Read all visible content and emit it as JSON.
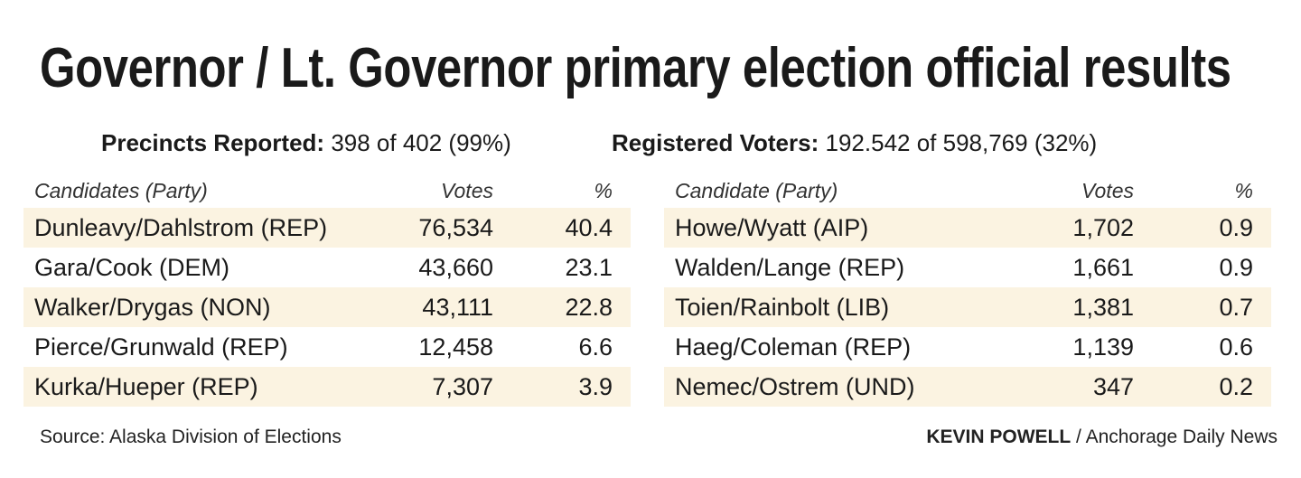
{
  "title": "Governor / Lt. Governor primary election official results",
  "precincts": {
    "label": "Precincts Reported:",
    "value": "398 of 402 (99%)"
  },
  "registered": {
    "label": "Registered Voters:",
    "value": "192.542 of 598,769 (32%)"
  },
  "chart_data": {
    "type": "table",
    "tables": [
      {
        "headers": [
          "Candidates (Party)",
          "Votes",
          "%"
        ],
        "rows": [
          [
            "Dunleavy/Dahlstrom (REP)",
            "76,534",
            "40.4"
          ],
          [
            "Gara/Cook (DEM)",
            "43,660",
            "23.1"
          ],
          [
            "Walker/Drygas (NON)",
            "43,111",
            "22.8"
          ],
          [
            "Pierce/Grunwald (REP)",
            "12,458",
            "6.6"
          ],
          [
            "Kurka/Hueper (REP)",
            "7,307",
            "3.9"
          ]
        ]
      },
      {
        "headers": [
          "Candidate (Party)",
          "Votes",
          "%"
        ],
        "rows": [
          [
            "Howe/Wyatt (AIP)",
            "1,702",
            "0.9"
          ],
          [
            "Walden/Lange (REP)",
            "1,661",
            "0.9"
          ],
          [
            "Toien/Rainbolt (LIB)",
            "1,381",
            "0.7"
          ],
          [
            "Haeg/Coleman (REP)",
            "1,139",
            "0.6"
          ],
          [
            "Nemec/Ostrem (UND)",
            "347",
            "0.2"
          ]
        ]
      }
    ]
  },
  "source": "Source: Alaska Division of Elections",
  "credit": {
    "name": "KEVIN POWELL",
    "outlet": " / Anchorage Daily News"
  },
  "colors": {
    "row_shade": "#fbf3e1",
    "text": "#1a1a1a"
  }
}
